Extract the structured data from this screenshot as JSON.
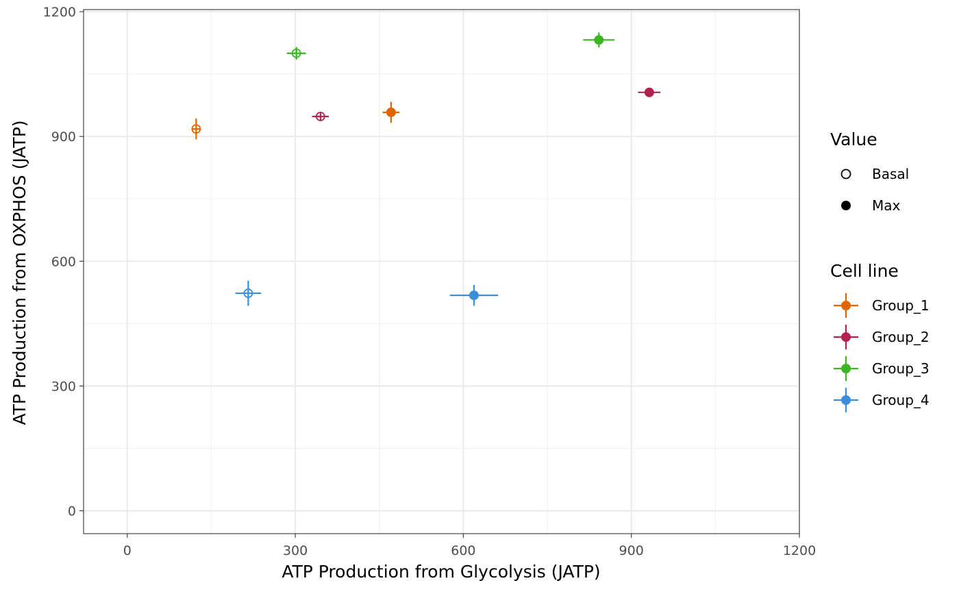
{
  "chart_data": {
    "type": "scatter",
    "xlabel": "ATP Production from Glycolysis (JATP)",
    "ylabel": "ATP Production from OXPHOS (JATP)",
    "xlim": [
      -78,
      1200
    ],
    "ylim": [
      -55,
      1205
    ],
    "x_ticks": [
      "0",
      "300",
      "600",
      "900",
      "1200"
    ],
    "y_ticks": [
      "0",
      "300",
      "600",
      "900",
      "1200"
    ],
    "grid": true,
    "legend_placement": "right",
    "legends": {
      "value": {
        "title": "Value",
        "items": [
          {
            "label": "Basal",
            "shape": "open-circle"
          },
          {
            "label": "Max",
            "shape": "filled-circle"
          }
        ]
      },
      "cell_line": {
        "title": "Cell line",
        "items": [
          {
            "label": "Group_1",
            "color": "#E06500"
          },
          {
            "label": "Group_2",
            "color": "#B5214F"
          },
          {
            "label": "Group_3",
            "color": "#3BB521"
          },
          {
            "label": "Group_4",
            "color": "#3A8FDB"
          }
        ]
      }
    },
    "series": [
      {
        "name": "Group_1",
        "color": "#E06500",
        "points": [
          {
            "value": "Basal",
            "x": 123,
            "y": 918,
            "xerr": 8,
            "yerr": 25
          },
          {
            "value": "Max",
            "x": 471,
            "y": 958,
            "xerr": 15,
            "yerr": 25
          }
        ]
      },
      {
        "name": "Group_2",
        "color": "#B5214F",
        "points": [
          {
            "value": "Basal",
            "x": 345,
            "y": 948,
            "xerr": 15,
            "yerr": 10
          },
          {
            "value": "Max",
            "x": 932,
            "y": 1006,
            "xerr": 20,
            "yerr": 10
          }
        ]
      },
      {
        "name": "Group_3",
        "color": "#3BB521",
        "points": [
          {
            "value": "Basal",
            "x": 302,
            "y": 1100,
            "xerr": 17,
            "yerr": 15
          },
          {
            "value": "Max",
            "x": 842,
            "y": 1132,
            "xerr": 28,
            "yerr": 18
          }
        ]
      },
      {
        "name": "Group_4",
        "color": "#3A8FDB",
        "points": [
          {
            "value": "Basal",
            "x": 216,
            "y": 523,
            "xerr": 23,
            "yerr": 30
          },
          {
            "value": "Max",
            "x": 619,
            "y": 518,
            "xerr": 43,
            "yerr": 25
          }
        ]
      }
    ]
  }
}
